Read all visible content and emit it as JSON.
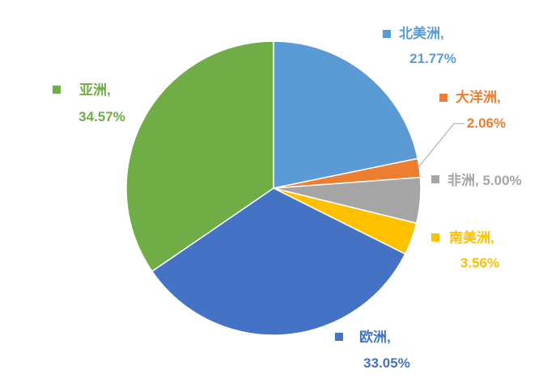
{
  "chart_data": {
    "type": "pie",
    "series": [
      {
        "name": "",
        "slices": [
          {
            "label": "北美洲",
            "value": 21.77,
            "display": "21.77%",
            "color": "#5b9bd5"
          },
          {
            "label": "大洋洲",
            "value": 2.06,
            "display": "2.06%",
            "color": "#ed7d31"
          },
          {
            "label": "非洲",
            "value": 5.0,
            "display": "5.00%",
            "color": "#a5a5a5"
          },
          {
            "label": "南美洲",
            "value": 3.56,
            "display": "3.56%",
            "color": "#ffc000"
          },
          {
            "label": "欧洲",
            "value": 33.05,
            "display": "33.05%",
            "color": "#4472c4"
          },
          {
            "label": "亚洲",
            "value": 34.57,
            "display": "34.57%",
            "color": "#70ad47"
          }
        ]
      }
    ],
    "start_angle": "12 o'clock",
    "direction": "clockwise",
    "data_labels": "outside with legend key, name and percentage"
  }
}
